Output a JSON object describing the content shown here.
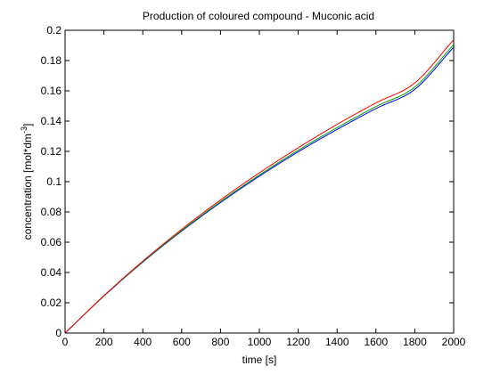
{
  "chart_data": {
    "type": "line",
    "title": "Production of coloured compound - Muconic acid",
    "xlabel": "time [s]",
    "ylabel": "concentration [mol*dm^-3]",
    "xlim": [
      0,
      2000
    ],
    "ylim": [
      0,
      0.2
    ],
    "xticks": [
      0,
      200,
      400,
      600,
      800,
      1000,
      1200,
      1400,
      1600,
      1800,
      2000
    ],
    "yticks": [
      0,
      0.02,
      0.04,
      0.06,
      0.08,
      0.1,
      0.12,
      0.14,
      0.16,
      0.18,
      0.2
    ],
    "grid": false,
    "legend": "none",
    "x": [
      0,
      200,
      400,
      600,
      800,
      1000,
      1200,
      1400,
      1600,
      1800,
      2000
    ],
    "series": [
      {
        "color": "#0000ff",
        "values": [
          0,
          0.0244,
          0.0468,
          0.0673,
          0.0862,
          0.1036,
          0.1197,
          0.1345,
          0.1483,
          0.161,
          0.1888
        ]
      },
      {
        "color": "#00a000",
        "values": [
          0,
          0.0245,
          0.047,
          0.0677,
          0.0868,
          0.1044,
          0.1207,
          0.1357,
          0.1496,
          0.1625,
          0.1905
        ]
      },
      {
        "color": "#ff0000",
        "values": [
          0,
          0.0247,
          0.0475,
          0.0685,
          0.0879,
          0.1058,
          0.1224,
          0.1378,
          0.152,
          0.1652,
          0.1937
        ]
      }
    ]
  }
}
